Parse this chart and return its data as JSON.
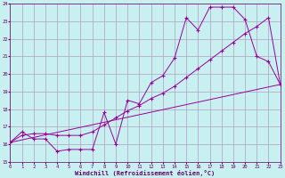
{
  "bg_color": "#c8f0f0",
  "line_color": "#990099",
  "grid_color": "#b0a0c0",
  "xmin": 0,
  "xmax": 23,
  "ymin": 15,
  "ymax": 24,
  "xlabel": "Windchill (Refroidissement éolien,°C)",
  "line1_x": [
    0,
    1,
    2,
    3,
    4,
    5,
    6,
    7,
    8,
    9,
    10,
    11,
    12,
    13,
    14,
    15,
    16,
    17,
    18,
    19,
    20,
    21,
    22,
    23
  ],
  "line1_y": [
    16.1,
    16.7,
    16.3,
    16.3,
    15.6,
    15.7,
    15.7,
    15.7,
    17.8,
    16.0,
    18.5,
    18.3,
    19.5,
    19.9,
    20.9,
    23.2,
    22.5,
    23.8,
    23.8,
    23.8,
    23.1,
    21.0,
    20.7,
    19.4
  ],
  "line2_x": [
    0,
    1,
    2,
    3,
    4,
    5,
    6,
    7,
    8,
    9,
    10,
    11,
    12,
    13,
    14,
    15,
    16,
    17,
    18,
    19,
    20,
    21,
    22,
    23
  ],
  "line2_y": [
    16.1,
    16.5,
    16.6,
    16.6,
    16.5,
    16.5,
    16.5,
    16.7,
    17.1,
    17.5,
    17.9,
    18.2,
    18.6,
    18.9,
    19.3,
    19.8,
    20.3,
    20.8,
    21.3,
    21.8,
    22.3,
    22.7,
    23.2,
    19.4
  ],
  "line3_x": [
    0,
    23
  ],
  "line3_y": [
    16.1,
    19.4
  ]
}
